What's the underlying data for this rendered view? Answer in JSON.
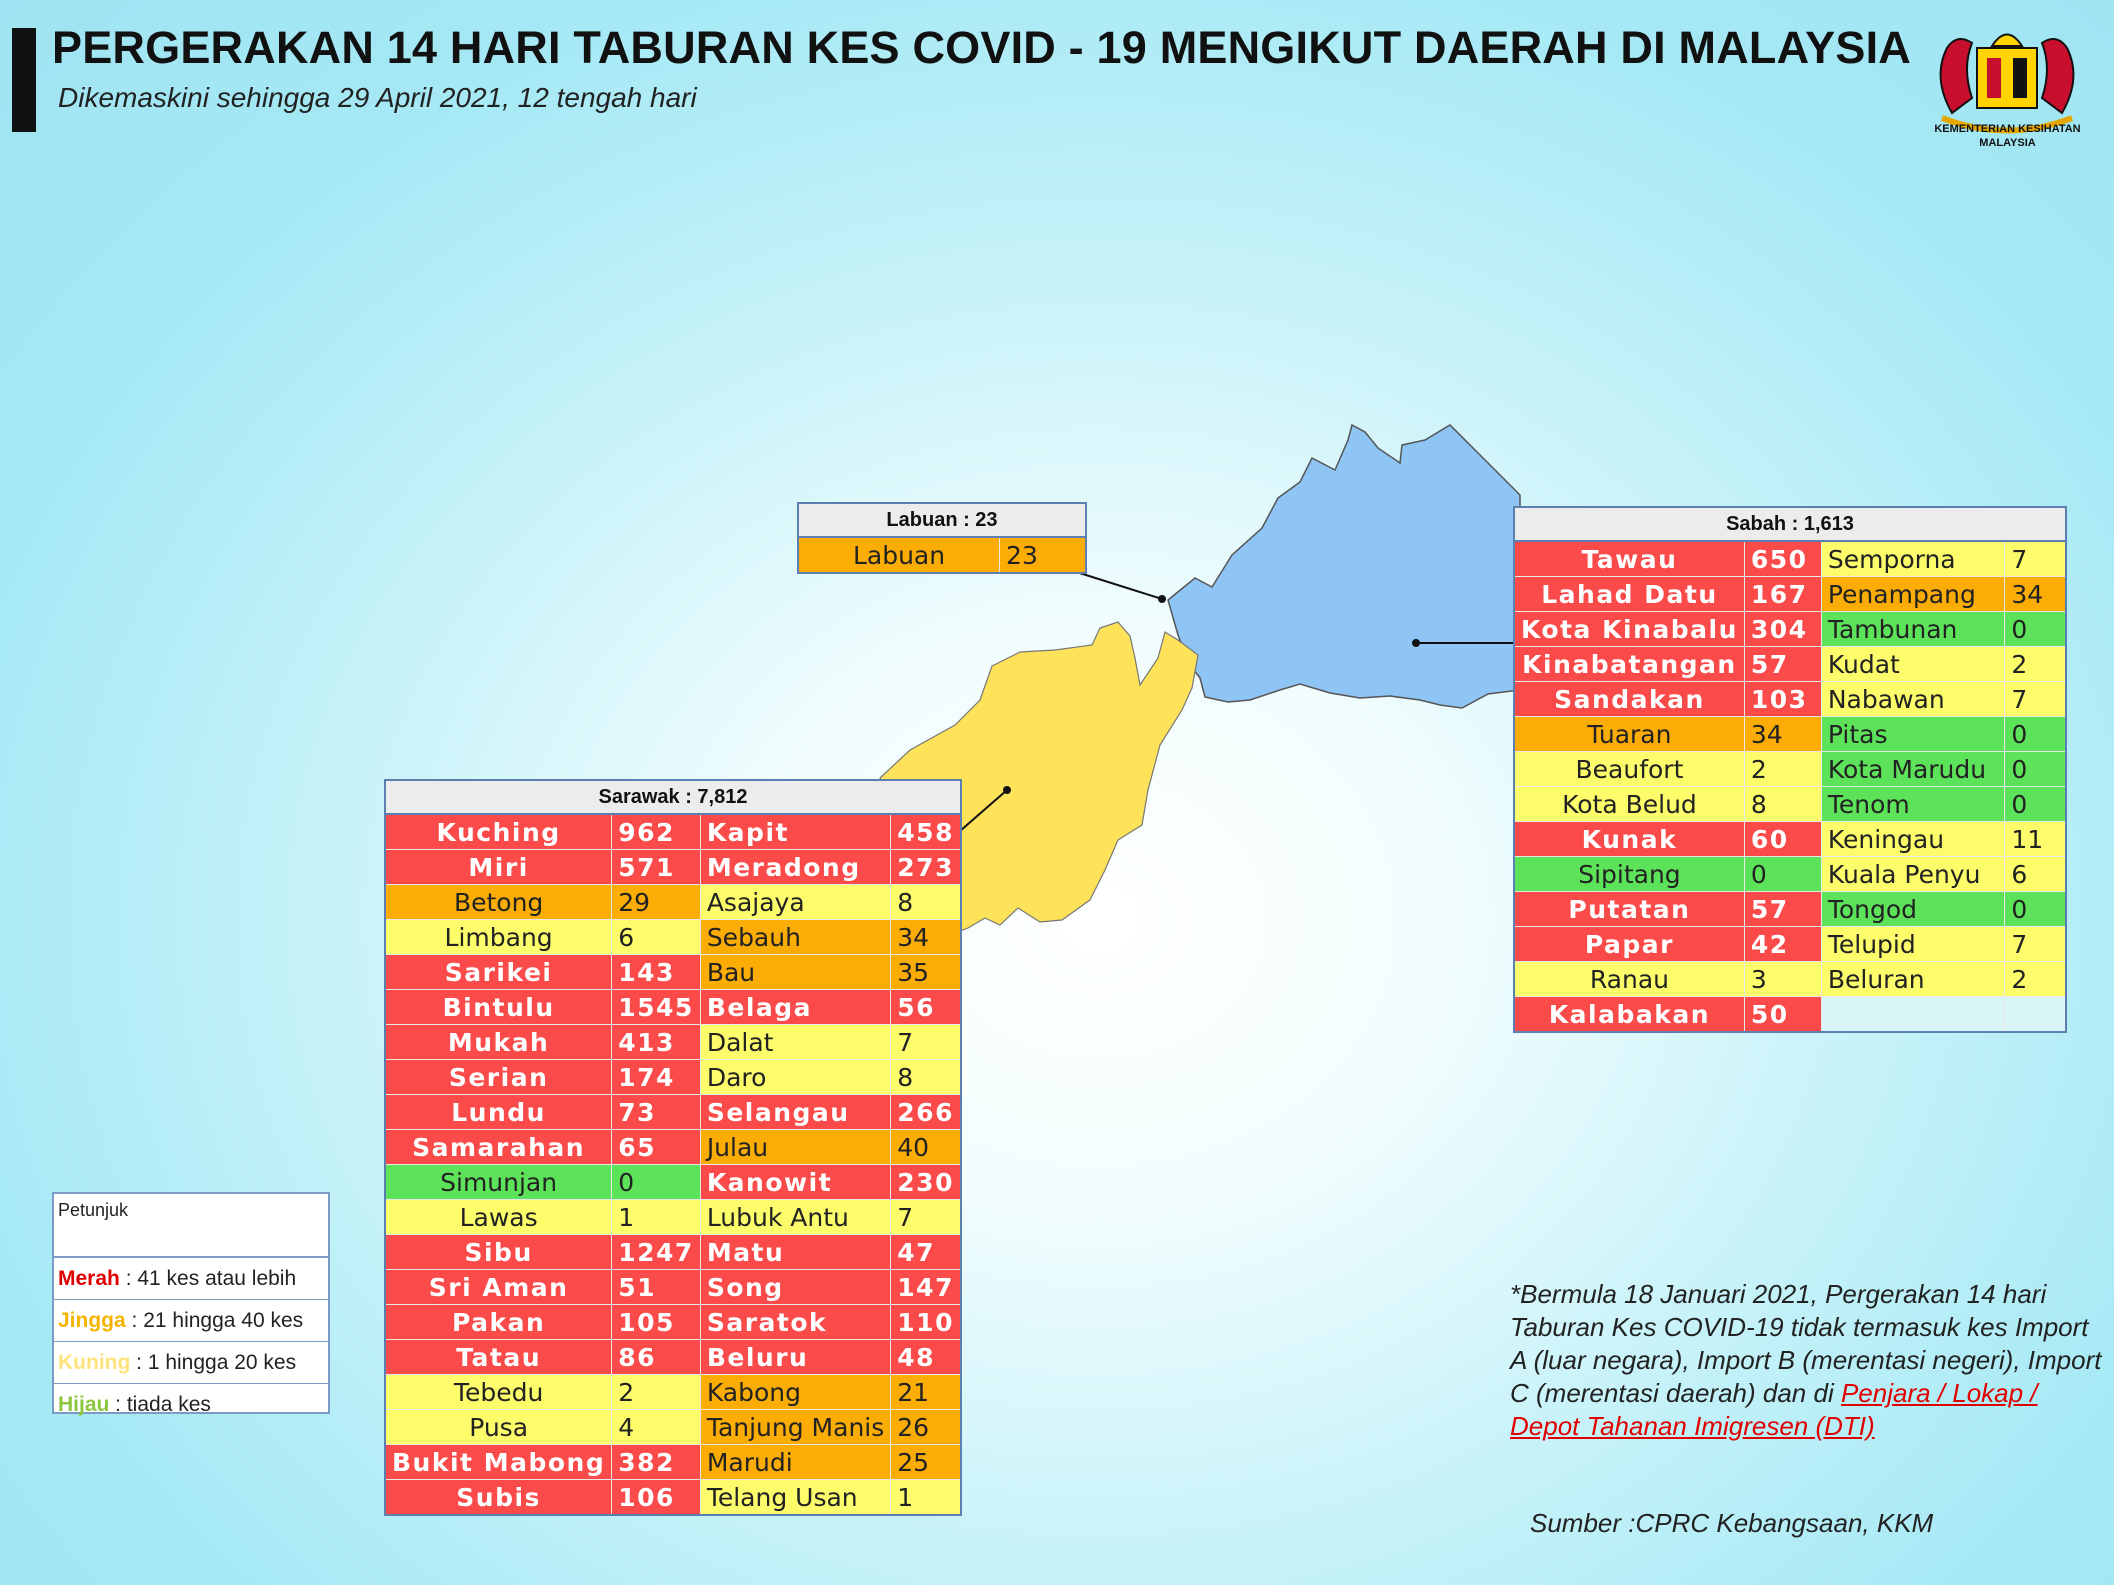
{
  "header": {
    "title": "PERGERAKAN 14 HARI TABURAN KES COVID - 19 MENGIKUT DAERAH DI MALAYSIA",
    "subtitle": "Dikemaskini sehingga 29 April 2021, 12 tengah hari"
  },
  "logo": {
    "label": "KEMENTERIAN KESIHATAN MALAYSIA",
    "icon": "ministry-crest-icon"
  },
  "colors": {
    "merah": "#fb4a4a",
    "jingga": "#fbad05",
    "kuning": "#fdfd6c",
    "hijau": "#5de35a",
    "sabah_fill": "#8ec5f5",
    "sarawak_fill": "#fde25a"
  },
  "labuan": {
    "header": "Labuan : 23",
    "rows": [
      {
        "name": "Labuan",
        "value": "23",
        "cat": "o"
      }
    ]
  },
  "sabah": {
    "header": "Sabah : 1,613",
    "rows": [
      [
        {
          "name": "Tawau",
          "value": "650",
          "cat": "r"
        },
        {
          "name": "Semporna",
          "value": "7",
          "cat": "y"
        }
      ],
      [
        {
          "name": "Lahad Datu",
          "value": "167",
          "cat": "r"
        },
        {
          "name": "Penampang",
          "value": "34",
          "cat": "o"
        }
      ],
      [
        {
          "name": "Kota Kinabalu",
          "value": "304",
          "cat": "r"
        },
        {
          "name": "Tambunan",
          "value": "0",
          "cat": "g"
        }
      ],
      [
        {
          "name": "Kinabatangan",
          "value": "57",
          "cat": "r"
        },
        {
          "name": "Kudat",
          "value": "2",
          "cat": "y"
        }
      ],
      [
        {
          "name": "Sandakan",
          "value": "103",
          "cat": "r"
        },
        {
          "name": "Nabawan",
          "value": "7",
          "cat": "y"
        }
      ],
      [
        {
          "name": "Tuaran",
          "value": "34",
          "cat": "o"
        },
        {
          "name": "Pitas",
          "value": "0",
          "cat": "g"
        }
      ],
      [
        {
          "name": "Beaufort",
          "value": "2",
          "cat": "y"
        },
        {
          "name": "Kota Marudu",
          "value": "0",
          "cat": "g"
        }
      ],
      [
        {
          "name": "Kota Belud",
          "value": "8",
          "cat": "y"
        },
        {
          "name": "Tenom",
          "value": "0",
          "cat": "g"
        }
      ],
      [
        {
          "name": "Kunak",
          "value": "60",
          "cat": "r"
        },
        {
          "name": "Keningau",
          "value": "11",
          "cat": "y"
        }
      ],
      [
        {
          "name": "Sipitang",
          "value": "0",
          "cat": "g"
        },
        {
          "name": "Kuala Penyu",
          "value": "6",
          "cat": "y"
        }
      ],
      [
        {
          "name": "Putatan",
          "value": "57",
          "cat": "r"
        },
        {
          "name": "Tongod",
          "value": "0",
          "cat": "g"
        }
      ],
      [
        {
          "name": "Papar",
          "value": "42",
          "cat": "r"
        },
        {
          "name": "Telupid",
          "value": "7",
          "cat": "y"
        }
      ],
      [
        {
          "name": "Ranau",
          "value": "3",
          "cat": "y"
        },
        {
          "name": "Beluran",
          "value": "2",
          "cat": "y"
        }
      ],
      [
        {
          "name": "Kalabakan",
          "value": "50",
          "cat": "r"
        },
        {
          "name": "",
          "value": "",
          "cat": "e"
        }
      ]
    ]
  },
  "sarawak": {
    "header": "Sarawak : 7,812",
    "rows": [
      [
        {
          "name": "Kuching",
          "value": "962",
          "cat": "r"
        },
        {
          "name": "Kapit",
          "value": "458",
          "cat": "r"
        }
      ],
      [
        {
          "name": "Miri",
          "value": "571",
          "cat": "r"
        },
        {
          "name": "Meradong",
          "value": "273",
          "cat": "r"
        }
      ],
      [
        {
          "name": "Betong",
          "value": "29",
          "cat": "o"
        },
        {
          "name": "Asajaya",
          "value": "8",
          "cat": "y"
        }
      ],
      [
        {
          "name": "Limbang",
          "value": "6",
          "cat": "y"
        },
        {
          "name": "Sebauh",
          "value": "34",
          "cat": "o"
        }
      ],
      [
        {
          "name": "Sarikei",
          "value": "143",
          "cat": "r"
        },
        {
          "name": "Bau",
          "value": "35",
          "cat": "o"
        }
      ],
      [
        {
          "name": "Bintulu",
          "value": "1545",
          "cat": "r"
        },
        {
          "name": "Belaga",
          "value": "56",
          "cat": "r"
        }
      ],
      [
        {
          "name": "Mukah",
          "value": "413",
          "cat": "r"
        },
        {
          "name": "Dalat",
          "value": "7",
          "cat": "y"
        }
      ],
      [
        {
          "name": "Serian",
          "value": "174",
          "cat": "r"
        },
        {
          "name": "Daro",
          "value": "8",
          "cat": "y"
        }
      ],
      [
        {
          "name": "Lundu",
          "value": "73",
          "cat": "r"
        },
        {
          "name": "Selangau",
          "value": "266",
          "cat": "r"
        }
      ],
      [
        {
          "name": "Samarahan",
          "value": "65",
          "cat": "r"
        },
        {
          "name": "Julau",
          "value": "40",
          "cat": "o"
        }
      ],
      [
        {
          "name": "Simunjan",
          "value": "0",
          "cat": "g"
        },
        {
          "name": "Kanowit",
          "value": "230",
          "cat": "r"
        }
      ],
      [
        {
          "name": "Lawas",
          "value": "1",
          "cat": "y"
        },
        {
          "name": "Lubuk Antu",
          "value": "7",
          "cat": "y"
        }
      ],
      [
        {
          "name": "Sibu",
          "value": "1247",
          "cat": "r"
        },
        {
          "name": "Matu",
          "value": "47",
          "cat": "r"
        }
      ],
      [
        {
          "name": "Sri Aman",
          "value": "51",
          "cat": "r"
        },
        {
          "name": "Song",
          "value": "147",
          "cat": "r"
        }
      ],
      [
        {
          "name": "Pakan",
          "value": "105",
          "cat": "r"
        },
        {
          "name": "Saratok",
          "value": "110",
          "cat": "r"
        }
      ],
      [
        {
          "name": "Tatau",
          "value": "86",
          "cat": "r"
        },
        {
          "name": "Beluru",
          "value": "48",
          "cat": "r"
        }
      ],
      [
        {
          "name": "Tebedu",
          "value": "2",
          "cat": "y"
        },
        {
          "name": "Kabong",
          "value": "21",
          "cat": "o"
        }
      ],
      [
        {
          "name": "Pusa",
          "value": "4",
          "cat": "y"
        },
        {
          "name": "Tanjung Manis",
          "value": "26",
          "cat": "o"
        }
      ],
      [
        {
          "name": "Bukit Mabong",
          "value": "382",
          "cat": "r"
        },
        {
          "name": "Marudi",
          "value": "25",
          "cat": "o"
        }
      ],
      [
        {
          "name": "Subis",
          "value": "106",
          "cat": "r"
        },
        {
          "name": "Telang Usan",
          "value": "1",
          "cat": "y"
        }
      ]
    ]
  },
  "legend": {
    "title": "Petunjuk",
    "items": [
      {
        "key": "Merah",
        "text": " : 41 kes atau lebih",
        "color": "#e00000"
      },
      {
        "key": "Jingga",
        "text": " : 21 hingga 40 kes",
        "color": "#f5b400"
      },
      {
        "key": "Kuning",
        "text": " : 1 hingga 20 kes",
        "color": "#fde37a"
      },
      {
        "key": "Hijau",
        "text": " : tiada kes",
        "color": "#8cc63f"
      }
    ]
  },
  "note": {
    "text": "*Bermula 18 Januari 2021, Pergerakan 14 hari Taburan Kes COVID-19 tidak termasuk kes Import A (luar negara), Import B (merentasi negeri), Import C (merentasi daerah) dan di",
    "highlight": "Penjara / Lokap / Depot Tahanan Imigresen (DTI)"
  },
  "source": "Sumber :CPRC Kebangsaan,  KKM"
}
